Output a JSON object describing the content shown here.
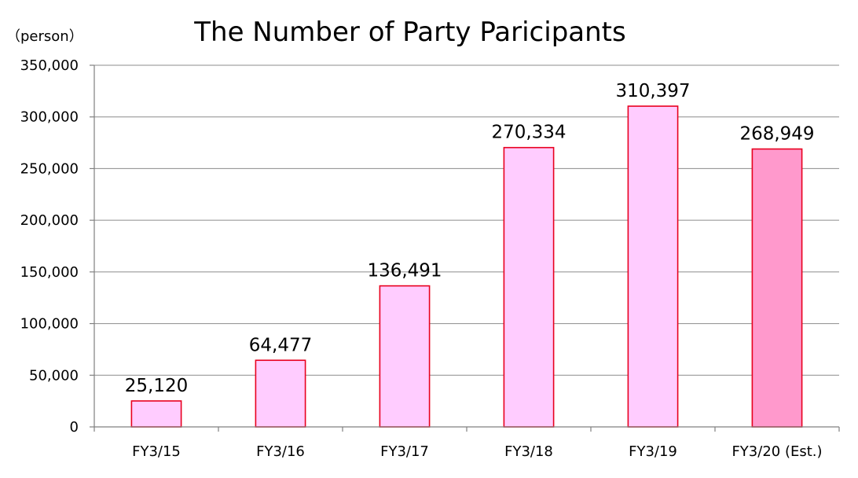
{
  "chart_data": {
    "type": "bar",
    "title": "The Number of Party Paricipants",
    "ylabel": "（person）",
    "xlabel": "",
    "categories": [
      "FY3/15",
      "FY3/16",
      "FY3/17",
      "FY3/18",
      "FY3/19",
      "FY3/20 (Est.)"
    ],
    "values": [
      25120,
      64477,
      136491,
      270334,
      310397,
      268949
    ],
    "data_labels": [
      "25,120",
      "64,477",
      "136,491",
      "270,334",
      "310,397",
      "268,949"
    ],
    "ylim": [
      0,
      350000
    ],
    "yticks": [
      0,
      50000,
      100000,
      150000,
      200000,
      250000,
      300000,
      350000
    ],
    "ytick_labels": [
      "0",
      "50,000",
      "100,000",
      "150,000",
      "200,000",
      "250,000",
      "300,000",
      "350,000"
    ],
    "grid": true,
    "legend": "none",
    "colors": {
      "bar_fill": "#ffccff",
      "bar_fill_estimate": "#ff99cc",
      "bar_stroke": "#e8001e"
    }
  }
}
